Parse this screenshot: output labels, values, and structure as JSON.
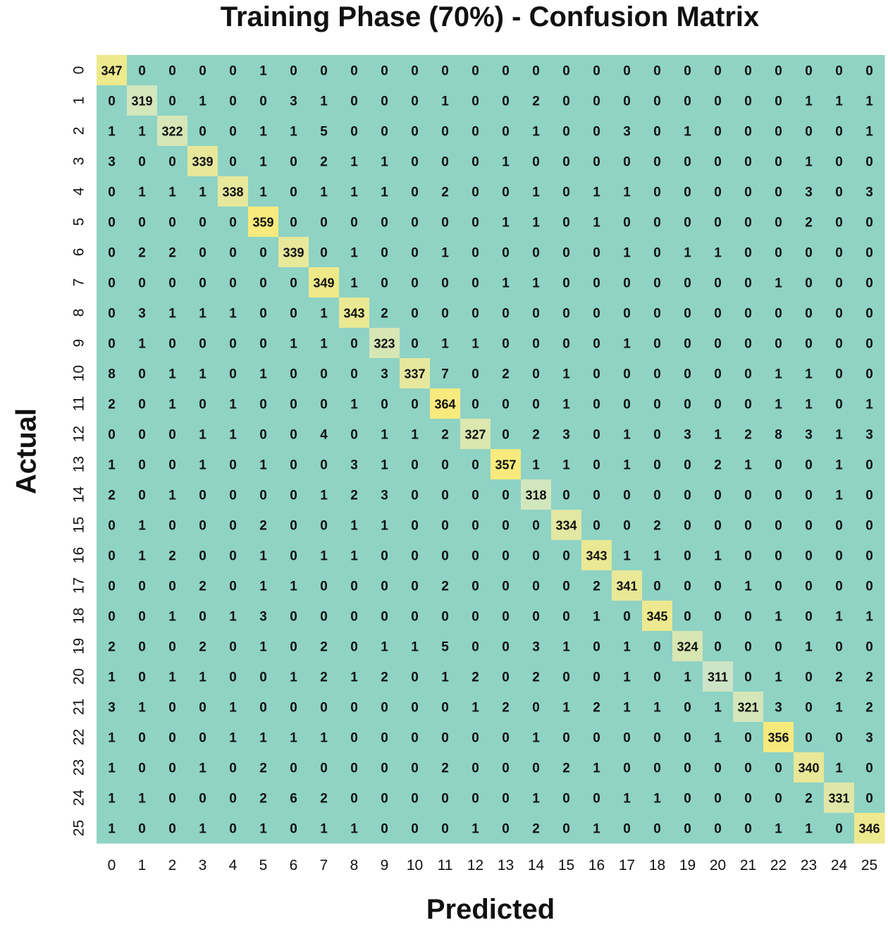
{
  "chart_data": {
    "type": "heatmap",
    "title": "Training Phase (70%) - Confusion Matrix",
    "xlabel": "Predicted",
    "ylabel": "Actual",
    "x_categories": [
      "0",
      "1",
      "2",
      "3",
      "4",
      "5",
      "6",
      "7",
      "8",
      "9",
      "10",
      "11",
      "12",
      "13",
      "14",
      "15",
      "16",
      "17",
      "18",
      "19",
      "20",
      "21",
      "22",
      "23",
      "24",
      "25"
    ],
    "y_categories": [
      "0",
      "1",
      "2",
      "3",
      "4",
      "5",
      "6",
      "7",
      "8",
      "9",
      "10",
      "11",
      "12",
      "13",
      "14",
      "15",
      "16",
      "17",
      "18",
      "19",
      "20",
      "21",
      "22",
      "23",
      "24",
      "25"
    ],
    "colors": {
      "background": "#8fd3c4",
      "diagonal_high": "#f8ea7c",
      "diagonal_low": "#cde5c6",
      "text": "#111111"
    },
    "values": [
      [
        347,
        0,
        0,
        0,
        0,
        1,
        0,
        0,
        0,
        0,
        0,
        0,
        0,
        0,
        0,
        0,
        0,
        0,
        0,
        0,
        0,
        0,
        0,
        0,
        0,
        0
      ],
      [
        0,
        319,
        0,
        1,
        0,
        0,
        3,
        1,
        0,
        0,
        0,
        1,
        0,
        0,
        2,
        0,
        0,
        0,
        0,
        0,
        0,
        0,
        0,
        1,
        1,
        1
      ],
      [
        1,
        1,
        322,
        0,
        0,
        1,
        1,
        5,
        0,
        0,
        0,
        0,
        0,
        0,
        1,
        0,
        0,
        3,
        0,
        1,
        0,
        0,
        0,
        0,
        0,
        1
      ],
      [
        3,
        0,
        0,
        339,
        0,
        1,
        0,
        2,
        1,
        1,
        0,
        0,
        0,
        1,
        0,
        0,
        0,
        0,
        0,
        0,
        0,
        0,
        0,
        1,
        0,
        0
      ],
      [
        0,
        1,
        1,
        1,
        338,
        1,
        0,
        1,
        1,
        1,
        0,
        2,
        0,
        0,
        1,
        0,
        1,
        1,
        0,
        0,
        0,
        0,
        0,
        3,
        0,
        3
      ],
      [
        0,
        0,
        0,
        0,
        0,
        359,
        0,
        0,
        0,
        0,
        0,
        0,
        0,
        1,
        1,
        0,
        1,
        0,
        0,
        0,
        0,
        0,
        0,
        2,
        0,
        0
      ],
      [
        0,
        2,
        2,
        0,
        0,
        0,
        339,
        0,
        1,
        0,
        0,
        1,
        0,
        0,
        0,
        0,
        0,
        1,
        0,
        1,
        1,
        0,
        0,
        0,
        0,
        0
      ],
      [
        0,
        0,
        0,
        0,
        0,
        0,
        0,
        349,
        1,
        0,
        0,
        0,
        0,
        1,
        1,
        0,
        0,
        0,
        0,
        0,
        0,
        0,
        1,
        0,
        0,
        0
      ],
      [
        0,
        3,
        1,
        1,
        1,
        0,
        0,
        1,
        343,
        2,
        0,
        0,
        0,
        0,
        0,
        0,
        0,
        0,
        0,
        0,
        0,
        0,
        0,
        0,
        0,
        0
      ],
      [
        0,
        1,
        0,
        0,
        0,
        0,
        1,
        1,
        0,
        323,
        0,
        1,
        1,
        0,
        0,
        0,
        0,
        1,
        0,
        0,
        0,
        0,
        0,
        0,
        0,
        0
      ],
      [
        8,
        0,
        1,
        1,
        0,
        1,
        0,
        0,
        0,
        3,
        337,
        7,
        0,
        2,
        0,
        1,
        0,
        0,
        0,
        0,
        0,
        0,
        1,
        1,
        0,
        0
      ],
      [
        2,
        0,
        1,
        0,
        1,
        0,
        0,
        0,
        1,
        0,
        0,
        364,
        0,
        0,
        0,
        1,
        0,
        0,
        0,
        0,
        0,
        0,
        1,
        1,
        0,
        1
      ],
      [
        0,
        0,
        0,
        1,
        1,
        0,
        0,
        4,
        0,
        1,
        1,
        2,
        327,
        0,
        2,
        3,
        0,
        1,
        0,
        3,
        1,
        2,
        8,
        3,
        1,
        3
      ],
      [
        1,
        0,
        0,
        1,
        0,
        1,
        0,
        0,
        3,
        1,
        0,
        0,
        0,
        357,
        1,
        1,
        0,
        1,
        0,
        0,
        2,
        1,
        0,
        0,
        1,
        0
      ],
      [
        2,
        0,
        1,
        0,
        0,
        0,
        0,
        1,
        2,
        3,
        0,
        0,
        0,
        0,
        318,
        0,
        0,
        0,
        0,
        0,
        0,
        0,
        0,
        0,
        1,
        0
      ],
      [
        0,
        1,
        0,
        0,
        0,
        2,
        0,
        0,
        1,
        1,
        0,
        0,
        0,
        0,
        0,
        334,
        0,
        0,
        2,
        0,
        0,
        0,
        0,
        0,
        0,
        0
      ],
      [
        0,
        1,
        2,
        0,
        0,
        1,
        0,
        1,
        1,
        0,
        0,
        0,
        0,
        0,
        0,
        0,
        343,
        1,
        1,
        0,
        1,
        0,
        0,
        0,
        0,
        0
      ],
      [
        0,
        0,
        0,
        2,
        0,
        1,
        1,
        0,
        0,
        0,
        0,
        2,
        0,
        0,
        0,
        0,
        2,
        341,
        0,
        0,
        0,
        1,
        0,
        0,
        0,
        0
      ],
      [
        0,
        0,
        1,
        0,
        1,
        3,
        0,
        0,
        0,
        0,
        0,
        0,
        0,
        0,
        0,
        0,
        1,
        0,
        345,
        0,
        0,
        0,
        1,
        0,
        1,
        1
      ],
      [
        2,
        0,
        0,
        2,
        0,
        1,
        0,
        2,
        0,
        1,
        1,
        5,
        0,
        0,
        3,
        1,
        0,
        1,
        0,
        324,
        0,
        0,
        0,
        1,
        0,
        0
      ],
      [
        1,
        0,
        1,
        1,
        0,
        0,
        1,
        2,
        1,
        2,
        0,
        1,
        2,
        0,
        2,
        0,
        0,
        1,
        0,
        1,
        311,
        0,
        1,
        0,
        2,
        2
      ],
      [
        3,
        1,
        0,
        0,
        1,
        0,
        0,
        0,
        0,
        0,
        0,
        0,
        1,
        2,
        0,
        1,
        2,
        1,
        1,
        0,
        1,
        321,
        3,
        0,
        1,
        2
      ],
      [
        1,
        0,
        0,
        0,
        1,
        1,
        1,
        1,
        0,
        0,
        0,
        0,
        0,
        0,
        1,
        0,
        0,
        0,
        0,
        0,
        1,
        0,
        356,
        0,
        0,
        3
      ],
      [
        1,
        0,
        0,
        1,
        0,
        2,
        0,
        0,
        0,
        0,
        0,
        2,
        0,
        0,
        0,
        2,
        1,
        0,
        0,
        0,
        0,
        0,
        0,
        340,
        1,
        0
      ],
      [
        1,
        1,
        0,
        0,
        0,
        2,
        6,
        2,
        0,
        0,
        0,
        0,
        0,
        0,
        1,
        0,
        0,
        1,
        1,
        0,
        0,
        0,
        0,
        2,
        331,
        0
      ],
      [
        1,
        0,
        0,
        1,
        0,
        1,
        0,
        1,
        1,
        0,
        0,
        0,
        1,
        0,
        2,
        0,
        1,
        0,
        0,
        0,
        0,
        0,
        1,
        1,
        0,
        346
      ]
    ]
  }
}
